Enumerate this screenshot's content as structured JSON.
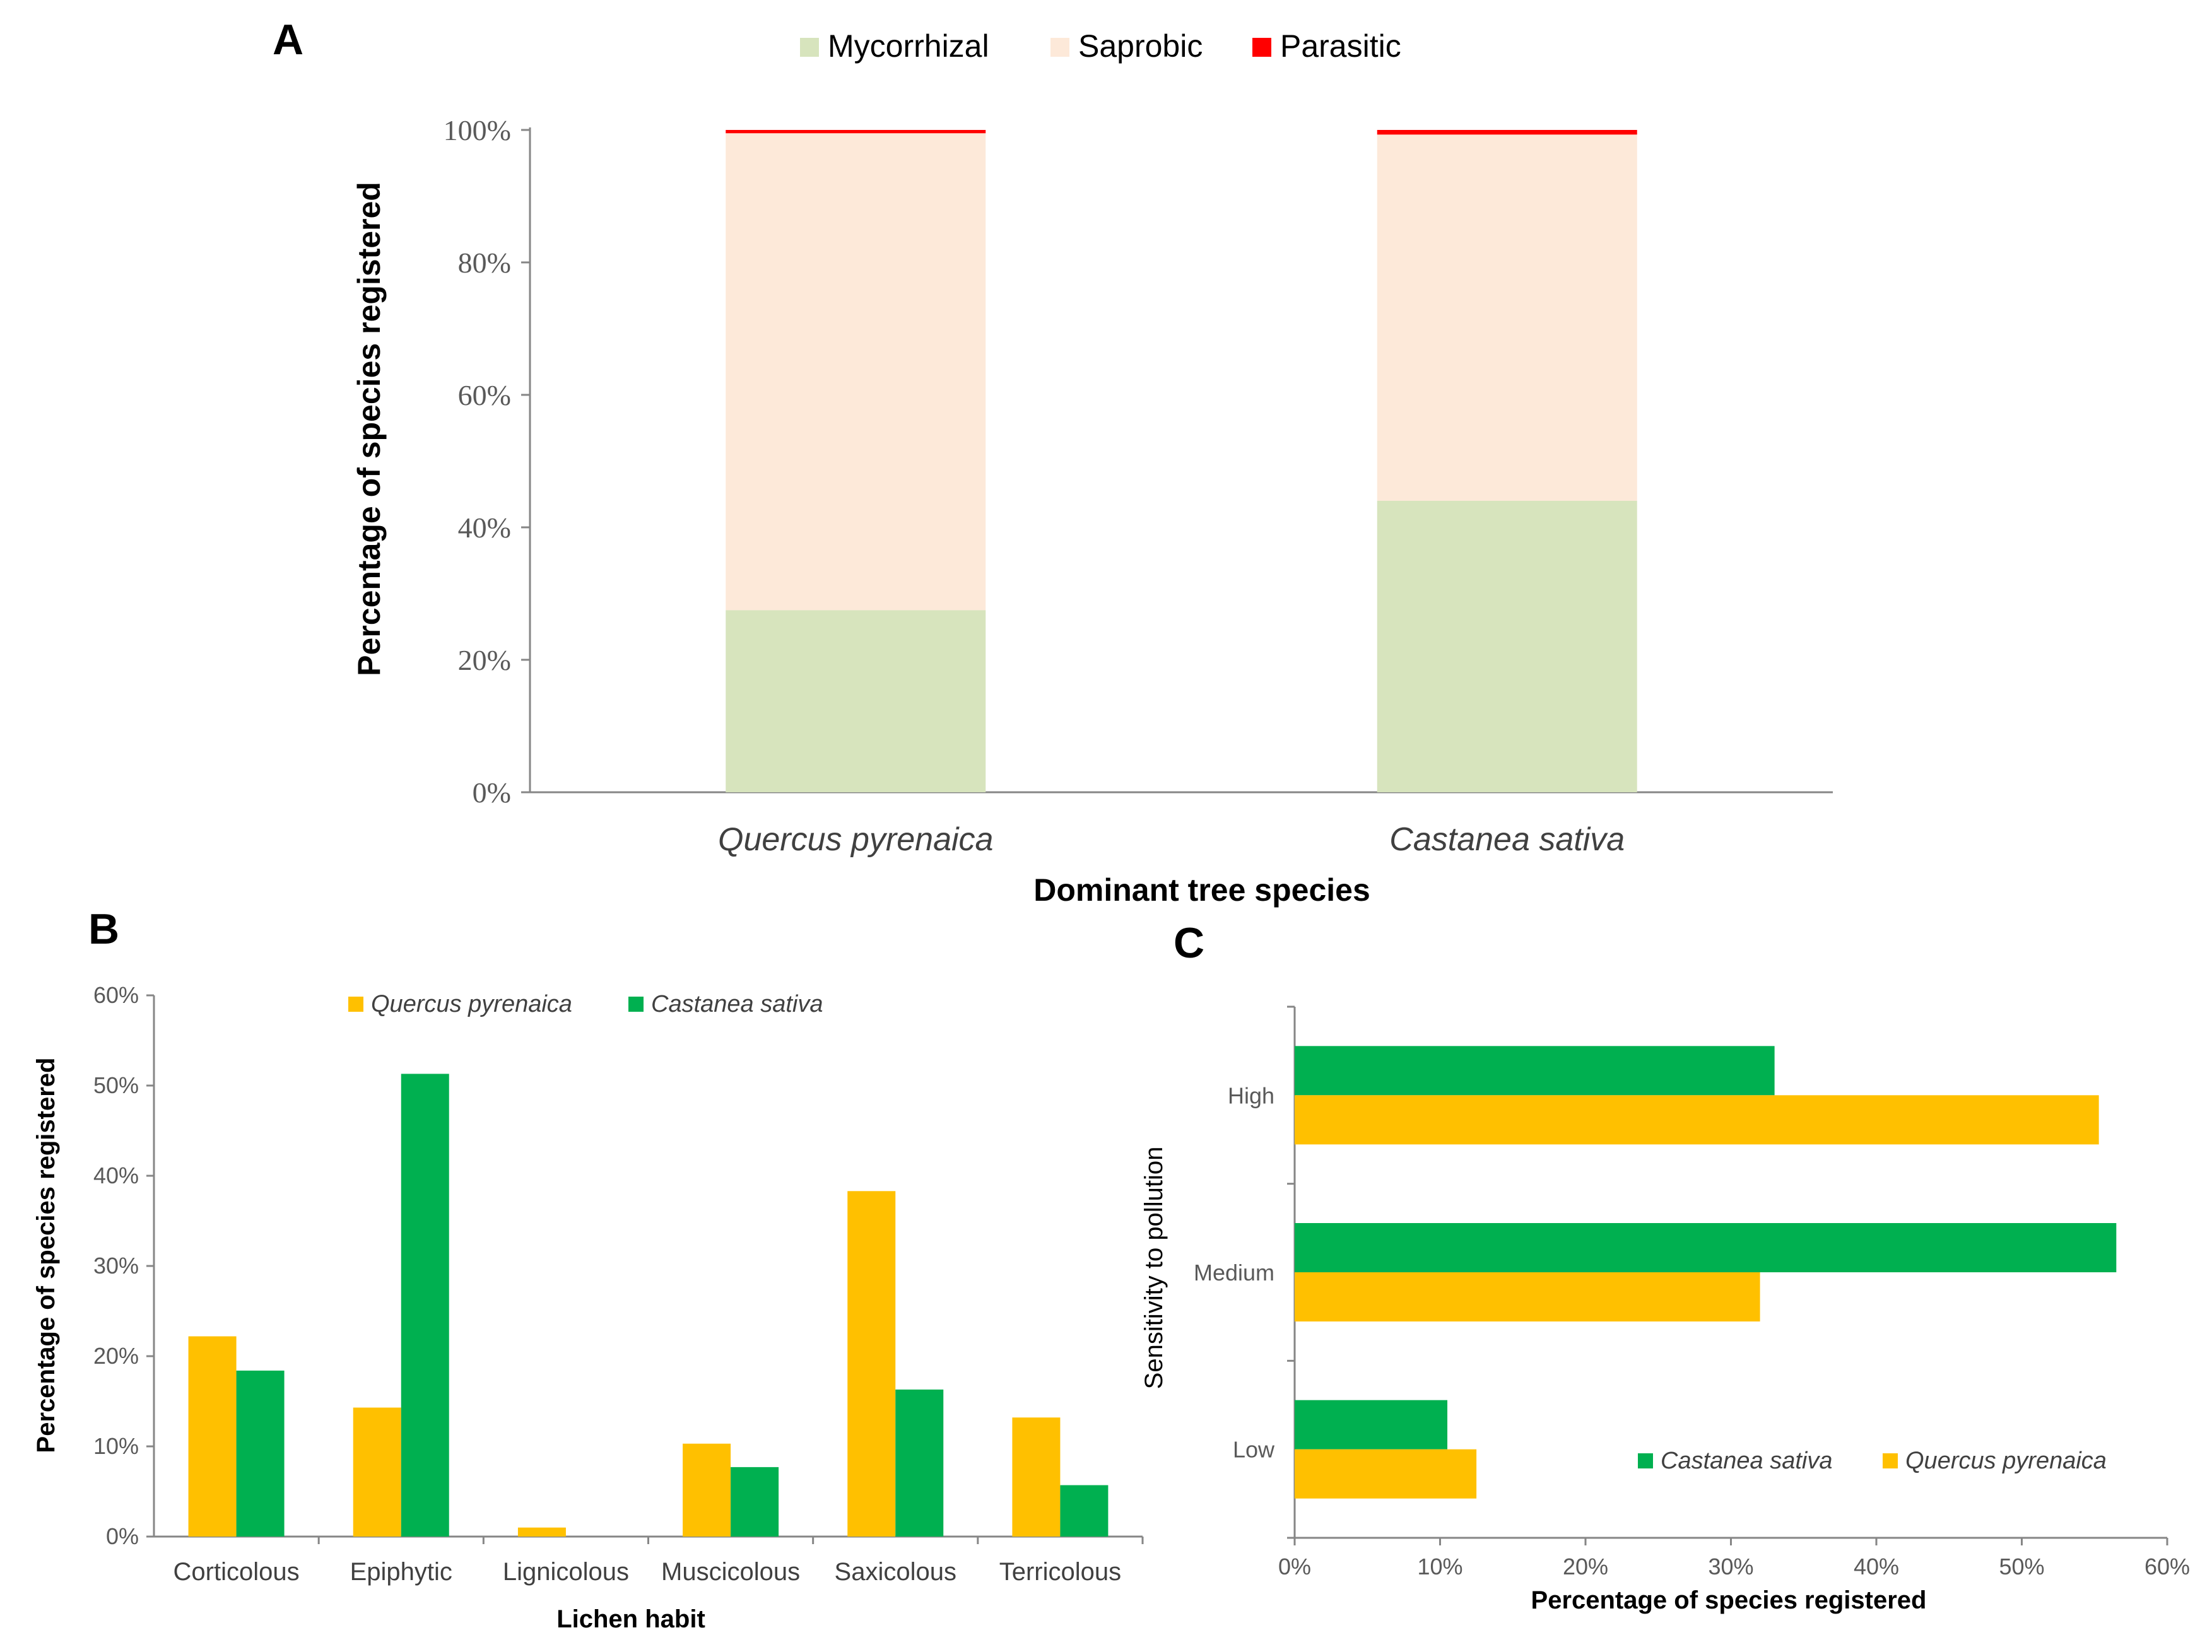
{
  "chart_data": [
    {
      "panel": "A",
      "type": "bar",
      "stacked": true,
      "categories": [
        "Quercus pyrenaica",
        "Castanea sativa"
      ],
      "series": [
        {
          "name": "Mycorrhizal",
          "values": [
            27.5,
            44
          ],
          "color": "#d7e4bd"
        },
        {
          "name": "Saprobic",
          "values": [
            72,
            55.3
          ],
          "color": "#fde9d9"
        },
        {
          "name": "Parasitic",
          "values": [
            0.5,
            0.7
          ],
          "color": "#ff0000"
        }
      ],
      "xlabel": "Dominant tree species",
      "ylabel": "Percentage of species registered",
      "ylim": [
        0,
        100
      ],
      "yticks": [
        "0%",
        "20%",
        "40%",
        "60%",
        "80%",
        "100%"
      ],
      "legend": "top"
    },
    {
      "panel": "B",
      "type": "bar",
      "categories": [
        "Corticolous",
        "Epiphytic",
        "Lignicolous",
        "Muscicolous",
        "Saxicolous",
        "Terricolous"
      ],
      "series": [
        {
          "name": "Quercus pyrenaica",
          "values": [
            22.2,
            14.3,
            1,
            10.3,
            38.3,
            13.2
          ],
          "color": "#ffc000"
        },
        {
          "name": "Castanea sativa",
          "values": [
            18.4,
            51.3,
            0,
            7.7,
            16.3,
            5.7
          ],
          "color": "#00b050"
        }
      ],
      "xlabel": "Lichen habit",
      "ylabel": "Percentage of species registered",
      "ylim": [
        0,
        60
      ],
      "yticks": [
        "0%",
        "10%",
        "20%",
        "30%",
        "40%",
        "50%",
        "60%"
      ],
      "legend": "top"
    },
    {
      "panel": "C",
      "type": "bar",
      "orientation": "horizontal",
      "categories": [
        "High",
        "Medium",
        "Low"
      ],
      "series": [
        {
          "name": "Castanea sativa",
          "values": [
            33,
            56.5,
            10.5
          ],
          "color": "#00b050"
        },
        {
          "name": "Quercus pyrenaica",
          "values": [
            55.3,
            32,
            12.5
          ],
          "color": "#ffc000"
        }
      ],
      "xlabel": "Percentage of species registered",
      "ylabel": "Sensitivity to pollution",
      "xlim": [
        0,
        60
      ],
      "xticks": [
        "0%",
        "10%",
        "20%",
        "30%",
        "40%",
        "50%",
        "60%"
      ],
      "legend": "bottom-right"
    }
  ]
}
